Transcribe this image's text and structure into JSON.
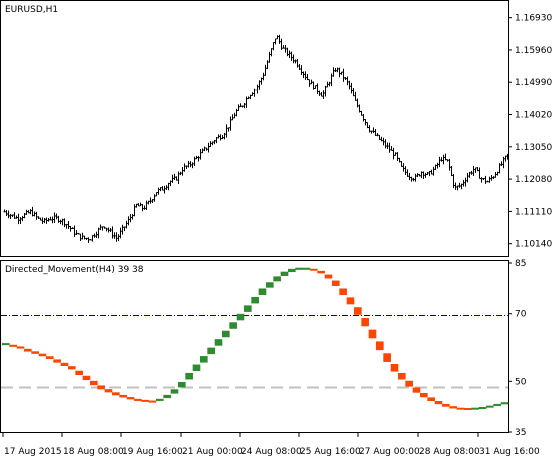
{
  "main_chart": {
    "symbol_label": "EURUSD,H1",
    "price_ticks": [
      "1.16930",
      "1.15960",
      "1.14990",
      "1.14020",
      "1.13050",
      "1.12080",
      "1.11110",
      "1.10140"
    ]
  },
  "indicator": {
    "label": "Directed_Movement(H4) 39 38",
    "scale_ticks": [
      "85",
      "70",
      "50",
      "35"
    ]
  },
  "time_axis": {
    "labels": [
      "17 Aug 2015",
      "18 Aug 08:00",
      "19 Aug 16:00",
      "21 Aug 00:00",
      "24 Aug 08:00",
      "25 Aug 16:00",
      "27 Aug 00:00",
      "28 Aug 08:00",
      "31 Aug 16:00"
    ]
  },
  "chart_data": [
    {
      "type": "ohlc",
      "title": "EURUSD,H1",
      "ylim": [
        1.098,
        1.174
      ],
      "y_ticks": [
        1.1693,
        1.1596,
        1.1499,
        1.1402,
        1.1305,
        1.1208,
        1.1111,
        1.1014
      ],
      "x_tick_labels": [
        "17 Aug 2015",
        "18 Aug 08:00",
        "19 Aug 16:00",
        "21 Aug 00:00",
        "24 Aug 08:00",
        "25 Aug 16:00",
        "27 Aug 00:00",
        "28 Aug 08:00",
        "31 Aug 16:00"
      ],
      "close_path": [
        1.111,
        1.11,
        1.109,
        1.11,
        1.111,
        1.109,
        1.108,
        1.109,
        1.109,
        1.108,
        1.106,
        1.104,
        1.103,
        1.103,
        1.105,
        1.107,
        1.105,
        1.103,
        1.106,
        1.109,
        1.113,
        1.112,
        1.114,
        1.117,
        1.118,
        1.12,
        1.121,
        1.124,
        1.125,
        1.127,
        1.129,
        1.131,
        1.133,
        1.134,
        1.137,
        1.141,
        1.143,
        1.146,
        1.148,
        1.152,
        1.158,
        1.164,
        1.16,
        1.158,
        1.156,
        1.153,
        1.15,
        1.148,
        1.146,
        1.15,
        1.154,
        1.152,
        1.149,
        1.144,
        1.14,
        1.136,
        1.134,
        1.132,
        1.13,
        1.128,
        1.124,
        1.122,
        1.121,
        1.123,
        1.122,
        1.124,
        1.127,
        1.126,
        1.118,
        1.119,
        1.122,
        1.124,
        1.121,
        1.12,
        1.122,
        1.125,
        1.128
      ],
      "grid": false
    },
    {
      "type": "histogram",
      "title": "Directed_Movement(H4) 39 38",
      "ylim": [
        35,
        85
      ],
      "y_ticks": [
        85,
        70,
        50,
        35
      ],
      "levels": [
        70,
        50
      ],
      "curve": [
        61,
        60.5,
        60,
        59.2,
        58.5,
        57.8,
        57,
        56,
        55,
        54,
        52.5,
        51,
        49.5,
        48.2,
        47.2,
        46.3,
        45.6,
        45,
        44.5,
        44.2,
        44,
        44.5,
        45.5,
        47,
        49,
        51.5,
        54,
        56.5,
        59,
        61.5,
        64,
        66.5,
        69,
        71.5,
        74,
        76.5,
        78.5,
        80.3,
        81.8,
        82.8,
        83.3,
        83.3,
        83,
        82.3,
        81,
        79,
        76.5,
        73.8,
        70.8,
        67.5,
        64,
        60.5,
        57,
        54,
        51.5,
        49.3,
        47.4,
        45.9,
        44.7,
        43.7,
        42.9,
        42.3,
        41.9,
        41.8,
        41.9,
        42.1,
        42.5,
        43,
        43.5
      ],
      "colors": {
        "rising": "#2e8b2e",
        "falling": "#ff4500",
        "level": "#00008b",
        "mid": "#c0c0c0"
      }
    }
  ]
}
